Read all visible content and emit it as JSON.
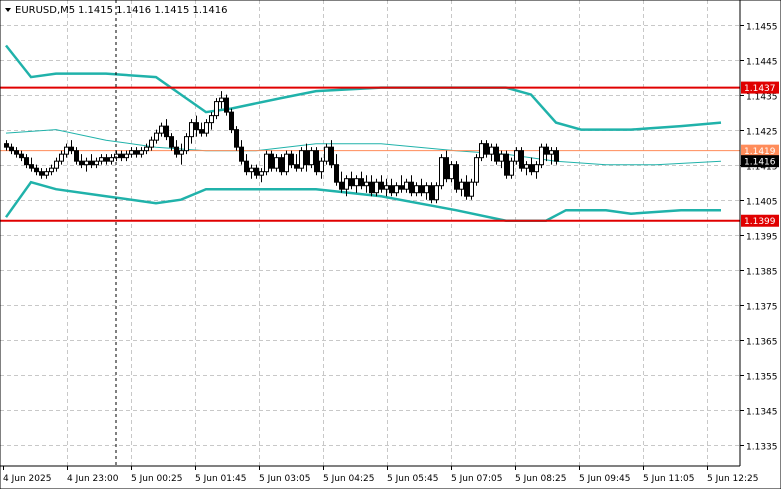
{
  "header": {
    "symbol": "EURUSD,M5",
    "ohlc": "1.1415 1.1416 1.1415 1.1416"
  },
  "colors": {
    "candle": "#000000",
    "band": "#20b2aa",
    "level": "#e00000",
    "current_line": "#ff8c5a",
    "grid": "#c8c8c8"
  },
  "chart_data": {
    "type": "candlestick",
    "y_range": [
      1.1329,
      1.1462
    ],
    "y_ticks": [
      "1.1455",
      "1.1445",
      "1.1435",
      "1.1425",
      "1.1415",
      "1.1405",
      "1.1395",
      "1.1385",
      "1.1375",
      "1.1365",
      "1.1355",
      "1.1345",
      "1.1335"
    ],
    "x_labels": [
      "4 Jun 2025",
      "4 Jun 23:00",
      "5 Jun 00:25",
      "5 Jun 01:45",
      "5 Jun 03:05",
      "5 Jun 04:25",
      "5 Jun 05:45",
      "5 Jun 07:05",
      "5 Jun 08:25",
      "5 Jun 09:45",
      "5 Jun 11:05",
      "5 Jun 12:25"
    ],
    "price_labels": {
      "upper_level": "1.1437",
      "current_bid": "1.1419",
      "last_price": "1.1416",
      "lower_level": "1.1399"
    },
    "levels": [
      {
        "price": 1.1437,
        "label": "1.1437",
        "color": "#e00000"
      },
      {
        "price": 1.1399,
        "label": "1.1399",
        "color": "#e00000"
      }
    ],
    "horizontal_lines": [
      {
        "price": 1.1419,
        "color": "#ff8c5a"
      }
    ],
    "indicator": "Bollinger Bands",
    "bands": {
      "upper": [
        [
          0,
          1.1449
        ],
        [
          5,
          1.144
        ],
        [
          10,
          1.1441
        ],
        [
          20,
          1.1441
        ],
        [
          30,
          1.144
        ],
        [
          35,
          1.1435
        ],
        [
          40,
          1.143
        ],
        [
          45,
          1.1431
        ],
        [
          55,
          1.1434
        ],
        [
          62,
          1.1436
        ],
        [
          75,
          1.1437
        ],
        [
          90,
          1.1437
        ],
        [
          100,
          1.1437
        ],
        [
          105,
          1.1435
        ],
        [
          110,
          1.1427
        ],
        [
          115,
          1.1425
        ],
        [
          125,
          1.1425
        ],
        [
          135,
          1.1426
        ],
        [
          143,
          1.1427
        ]
      ],
      "middle": [
        [
          0,
          1.1424
        ],
        [
          10,
          1.1425
        ],
        [
          20,
          1.1422
        ],
        [
          30,
          1.142
        ],
        [
          40,
          1.1419
        ],
        [
          50,
          1.1419
        ],
        [
          62,
          1.1421
        ],
        [
          75,
          1.1421
        ],
        [
          90,
          1.1419
        ],
        [
          100,
          1.1418
        ],
        [
          110,
          1.1416
        ],
        [
          120,
          1.1415
        ],
        [
          130,
          1.1415
        ],
        [
          143,
          1.1416
        ]
      ],
      "lower": [
        [
          0,
          1.14
        ],
        [
          5,
          1.141
        ],
        [
          10,
          1.1408
        ],
        [
          20,
          1.1406
        ],
        [
          30,
          1.1404
        ],
        [
          35,
          1.1405
        ],
        [
          40,
          1.1408
        ],
        [
          50,
          1.1408
        ],
        [
          62,
          1.1408
        ],
        [
          75,
          1.1406
        ],
        [
          90,
          1.1402
        ],
        [
          100,
          1.1399
        ],
        [
          108,
          1.1399
        ],
        [
          112,
          1.1402
        ],
        [
          120,
          1.1402
        ],
        [
          125,
          1.1401
        ],
        [
          135,
          1.1402
        ],
        [
          143,
          1.1402
        ]
      ]
    },
    "candles": [
      [
        1.1421,
        1.1422,
        1.1419,
        1.142
      ],
      [
        1.142,
        1.1421,
        1.1418,
        1.1419
      ],
      [
        1.1419,
        1.142,
        1.1417,
        1.1418
      ],
      [
        1.1418,
        1.1419,
        1.1416,
        1.1417
      ],
      [
        1.1417,
        1.1418,
        1.1414,
        1.1415
      ],
      [
        1.1415,
        1.1417,
        1.1413,
        1.1414
      ],
      [
        1.1414,
        1.1415,
        1.1412,
        1.1413
      ],
      [
        1.1413,
        1.1414,
        1.1411,
        1.1412
      ],
      [
        1.1412,
        1.1414,
        1.1411,
        1.1413
      ],
      [
        1.1413,
        1.1415,
        1.1412,
        1.1414
      ],
      [
        1.1414,
        1.1417,
        1.1413,
        1.1416
      ],
      [
        1.1416,
        1.1419,
        1.1415,
        1.1418
      ],
      [
        1.1418,
        1.1421,
        1.1417,
        1.142
      ],
      [
        1.142,
        1.1422,
        1.1418,
        1.1419
      ],
      [
        1.1419,
        1.142,
        1.1415,
        1.1416
      ],
      [
        1.1416,
        1.1418,
        1.1414,
        1.1415
      ],
      [
        1.1415,
        1.1417,
        1.1413,
        1.1416
      ],
      [
        1.1416,
        1.1418,
        1.1414,
        1.1415
      ],
      [
        1.1415,
        1.1417,
        1.1414,
        1.1416
      ],
      [
        1.1416,
        1.1418,
        1.1415,
        1.1417
      ],
      [
        1.1417,
        1.1418,
        1.1415,
        1.1416
      ],
      [
        1.1416,
        1.1418,
        1.1415,
        1.1417
      ],
      [
        1.1417,
        1.1419,
        1.1416,
        1.1418
      ],
      [
        1.1418,
        1.1419,
        1.1416,
        1.1417
      ],
      [
        1.1417,
        1.1419,
        1.1416,
        1.1418
      ],
      [
        1.1418,
        1.142,
        1.1417,
        1.1419
      ],
      [
        1.1419,
        1.142,
        1.1417,
        1.1418
      ],
      [
        1.1418,
        1.142,
        1.1417,
        1.1419
      ],
      [
        1.1419,
        1.1421,
        1.1418,
        1.142
      ],
      [
        1.142,
        1.1423,
        1.1419,
        1.1422
      ],
      [
        1.1422,
        1.1425,
        1.1421,
        1.1424
      ],
      [
        1.1424,
        1.1427,
        1.1423,
        1.1426
      ],
      [
        1.1426,
        1.1428,
        1.1422,
        1.1423
      ],
      [
        1.1423,
        1.1424,
        1.1419,
        1.142
      ],
      [
        1.142,
        1.1422,
        1.1417,
        1.1418
      ],
      [
        1.1418,
        1.1421,
        1.1415,
        1.1419
      ],
      [
        1.1419,
        1.1424,
        1.1418,
        1.1423
      ],
      [
        1.1423,
        1.1428,
        1.1421,
        1.1427
      ],
      [
        1.1427,
        1.1429,
        1.1423,
        1.1425
      ],
      [
        1.1425,
        1.1427,
        1.1423,
        1.1424
      ],
      [
        1.1424,
        1.1428,
        1.1423,
        1.1427
      ],
      [
        1.1427,
        1.143,
        1.1425,
        1.1429
      ],
      [
        1.1429,
        1.1434,
        1.1428,
        1.1433
      ],
      [
        1.1433,
        1.1436,
        1.1431,
        1.1434
      ],
      [
        1.1434,
        1.1435,
        1.1429,
        1.143
      ],
      [
        1.143,
        1.1431,
        1.1424,
        1.1425
      ],
      [
        1.1425,
        1.1426,
        1.1419,
        1.142
      ],
      [
        1.142,
        1.1422,
        1.1415,
        1.1416
      ],
      [
        1.1416,
        1.1418,
        1.1412,
        1.1413
      ],
      [
        1.1413,
        1.1415,
        1.1411,
        1.1414
      ],
      [
        1.1414,
        1.1415,
        1.1411,
        1.1412
      ],
      [
        1.1412,
        1.1414,
        1.141,
        1.1413
      ],
      [
        1.1413,
        1.1419,
        1.1412,
        1.1418
      ],
      [
        1.1418,
        1.1419,
        1.1413,
        1.1414
      ],
      [
        1.1414,
        1.1418,
        1.1413,
        1.1417
      ],
      [
        1.1417,
        1.1418,
        1.1412,
        1.1413
      ],
      [
        1.1413,
        1.1419,
        1.1412,
        1.1418
      ],
      [
        1.1418,
        1.1419,
        1.1414,
        1.1415
      ],
      [
        1.1415,
        1.1418,
        1.1413,
        1.1414
      ],
      [
        1.1414,
        1.142,
        1.1413,
        1.1419
      ],
      [
        1.1419,
        1.1421,
        1.1413,
        1.1415
      ],
      [
        1.1415,
        1.142,
        1.1414,
        1.1419
      ],
      [
        1.1419,
        1.142,
        1.1412,
        1.1413
      ],
      [
        1.1413,
        1.1417,
        1.1411,
        1.1416
      ],
      [
        1.1416,
        1.1421,
        1.1415,
        1.142
      ],
      [
        1.142,
        1.1422,
        1.1414,
        1.1415
      ],
      [
        1.1415,
        1.1418,
        1.1409,
        1.141
      ],
      [
        1.141,
        1.1413,
        1.1407,
        1.1408
      ],
      [
        1.1408,
        1.1412,
        1.1406,
        1.1411
      ],
      [
        1.1411,
        1.1413,
        1.1408,
        1.1409
      ],
      [
        1.1409,
        1.1412,
        1.1407,
        1.1411
      ],
      [
        1.1411,
        1.1413,
        1.1408,
        1.1409
      ],
      [
        1.1409,
        1.1412,
        1.1407,
        1.141
      ],
      [
        1.141,
        1.1412,
        1.1406,
        1.1407
      ],
      [
        1.1407,
        1.1411,
        1.1406,
        1.141
      ],
      [
        1.141,
        1.1412,
        1.1407,
        1.1408
      ],
      [
        1.1408,
        1.1411,
        1.1406,
        1.1409
      ],
      [
        1.1409,
        1.1411,
        1.1406,
        1.1407
      ],
      [
        1.1407,
        1.141,
        1.1406,
        1.1409
      ],
      [
        1.1409,
        1.1412,
        1.1407,
        1.1408
      ],
      [
        1.1408,
        1.1411,
        1.1407,
        1.141
      ],
      [
        1.141,
        1.1412,
        1.1406,
        1.1407
      ],
      [
        1.1407,
        1.141,
        1.1406,
        1.1409
      ],
      [
        1.1409,
        1.1411,
        1.1406,
        1.1407
      ],
      [
        1.1407,
        1.141,
        1.1405,
        1.1409
      ],
      [
        1.1409,
        1.141,
        1.1404,
        1.1405
      ],
      [
        1.1405,
        1.141,
        1.1404,
        1.1409
      ],
      [
        1.1409,
        1.1418,
        1.1408,
        1.1417
      ],
      [
        1.1417,
        1.1419,
        1.141,
        1.1411
      ],
      [
        1.1411,
        1.1416,
        1.141,
        1.1415
      ],
      [
        1.1415,
        1.1416,
        1.1407,
        1.1408
      ],
      [
        1.1408,
        1.1411,
        1.1406,
        1.141
      ],
      [
        1.141,
        1.1412,
        1.1405,
        1.1406
      ],
      [
        1.1406,
        1.1411,
        1.1405,
        1.141
      ],
      [
        1.141,
        1.1418,
        1.1409,
        1.1417
      ],
      [
        1.1417,
        1.1422,
        1.1416,
        1.1421
      ],
      [
        1.1421,
        1.1422,
        1.1417,
        1.1418
      ],
      [
        1.1418,
        1.1421,
        1.1416,
        1.142
      ],
      [
        1.142,
        1.1421,
        1.1415,
        1.1416
      ],
      [
        1.1416,
        1.1419,
        1.1414,
        1.1418
      ],
      [
        1.1418,
        1.1419,
        1.1411,
        1.1412
      ],
      [
        1.1412,
        1.1417,
        1.1411,
        1.1416
      ],
      [
        1.1416,
        1.142,
        1.1415,
        1.1419
      ],
      [
        1.1419,
        1.142,
        1.1413,
        1.1414
      ],
      [
        1.1414,
        1.1416,
        1.1412,
        1.1415
      ],
      [
        1.1415,
        1.1417,
        1.1412,
        1.1413
      ],
      [
        1.1413,
        1.1416,
        1.1411,
        1.1415
      ],
      [
        1.1415,
        1.1421,
        1.1414,
        1.142
      ],
      [
        1.142,
        1.1421,
        1.1416,
        1.1418
      ],
      [
        1.1418,
        1.142,
        1.1415,
        1.1419
      ],
      [
        1.1419,
        1.142,
        1.1415,
        1.1416
      ]
    ]
  }
}
